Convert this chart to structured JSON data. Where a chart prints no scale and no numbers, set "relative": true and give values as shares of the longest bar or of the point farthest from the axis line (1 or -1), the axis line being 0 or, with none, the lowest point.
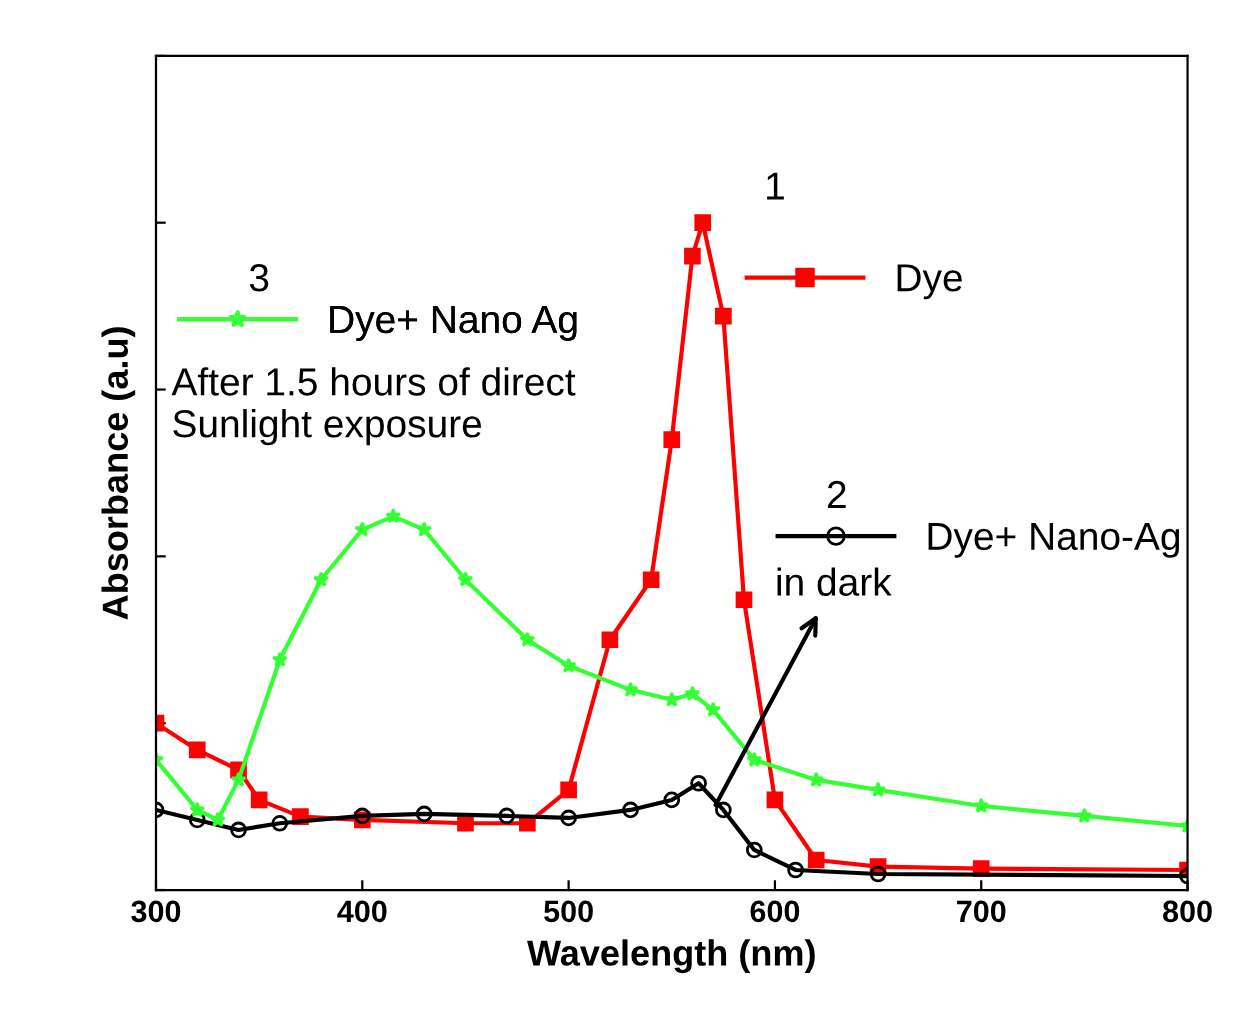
{
  "chart_data": {
    "type": "line",
    "xlabel": "Wavelength (nm)",
    "ylabel": "Absorbance (a.u)",
    "relative": true,
    "xlim": [
      300,
      800
    ],
    "xticks": [
      300,
      400,
      500,
      600,
      700,
      800
    ],
    "grid": false,
    "legend": "top right",
    "series": [
      {
        "name": "Dye",
        "color": "#ff0000",
        "marker": "square",
        "x": [
          300,
          320,
          340,
          350,
          370,
          400,
          450,
          480,
          500,
          520,
          540,
          550,
          560,
          565,
          575,
          585,
          600,
          620,
          650,
          700,
          800
        ],
        "values": [
          0.25,
          0.21,
          0.18,
          0.135,
          0.11,
          0.105,
          0.1,
          0.1,
          0.15,
          0.375,
          0.465,
          0.675,
          0.95,
          1,
          0.86,
          0.435,
          0.135,
          0.045,
          0.035,
          0.032,
          0.03
        ]
      },
      {
        "name": "Dye+ Nano-Ag",
        "color": "#000000",
        "marker": "circle",
        "x": [
          300,
          320,
          340,
          360,
          400,
          430,
          470,
          500,
          530,
          550,
          563,
          575,
          590,
          610,
          650,
          800
        ],
        "values": [
          0.12,
          0.105,
          0.09,
          0.1,
          0.111,
          0.114,
          0.111,
          0.108,
          0.12,
          0.135,
          0.16,
          0.12,
          0.06,
          0.03,
          0.024,
          0.021
        ]
      },
      {
        "name": "Dye+ Nano Ag",
        "color": "#33ff33",
        "marker": "star",
        "x": [
          300,
          320,
          330,
          340,
          360,
          380,
          400,
          415,
          430,
          450,
          480,
          500,
          530,
          550,
          560,
          570,
          590,
          620,
          650,
          700,
          750,
          800
        ],
        "values": [
          0.195,
          0.12,
          0.105,
          0.165,
          0.345,
          0.465,
          0.54,
          0.56,
          0.54,
          0.465,
          0.375,
          0.336,
          0.3,
          0.285,
          0.294,
          0.27,
          0.195,
          0.165,
          0.15,
          0.126,
          0.111,
          0.096
        ]
      }
    ],
    "annotations": [
      "1",
      "2",
      "3",
      "After 1.5 hours of direct\nSunlight exposure",
      {
        "text": "in dark",
        "x": 570,
        "y": 0.12
      }
    ]
  }
}
